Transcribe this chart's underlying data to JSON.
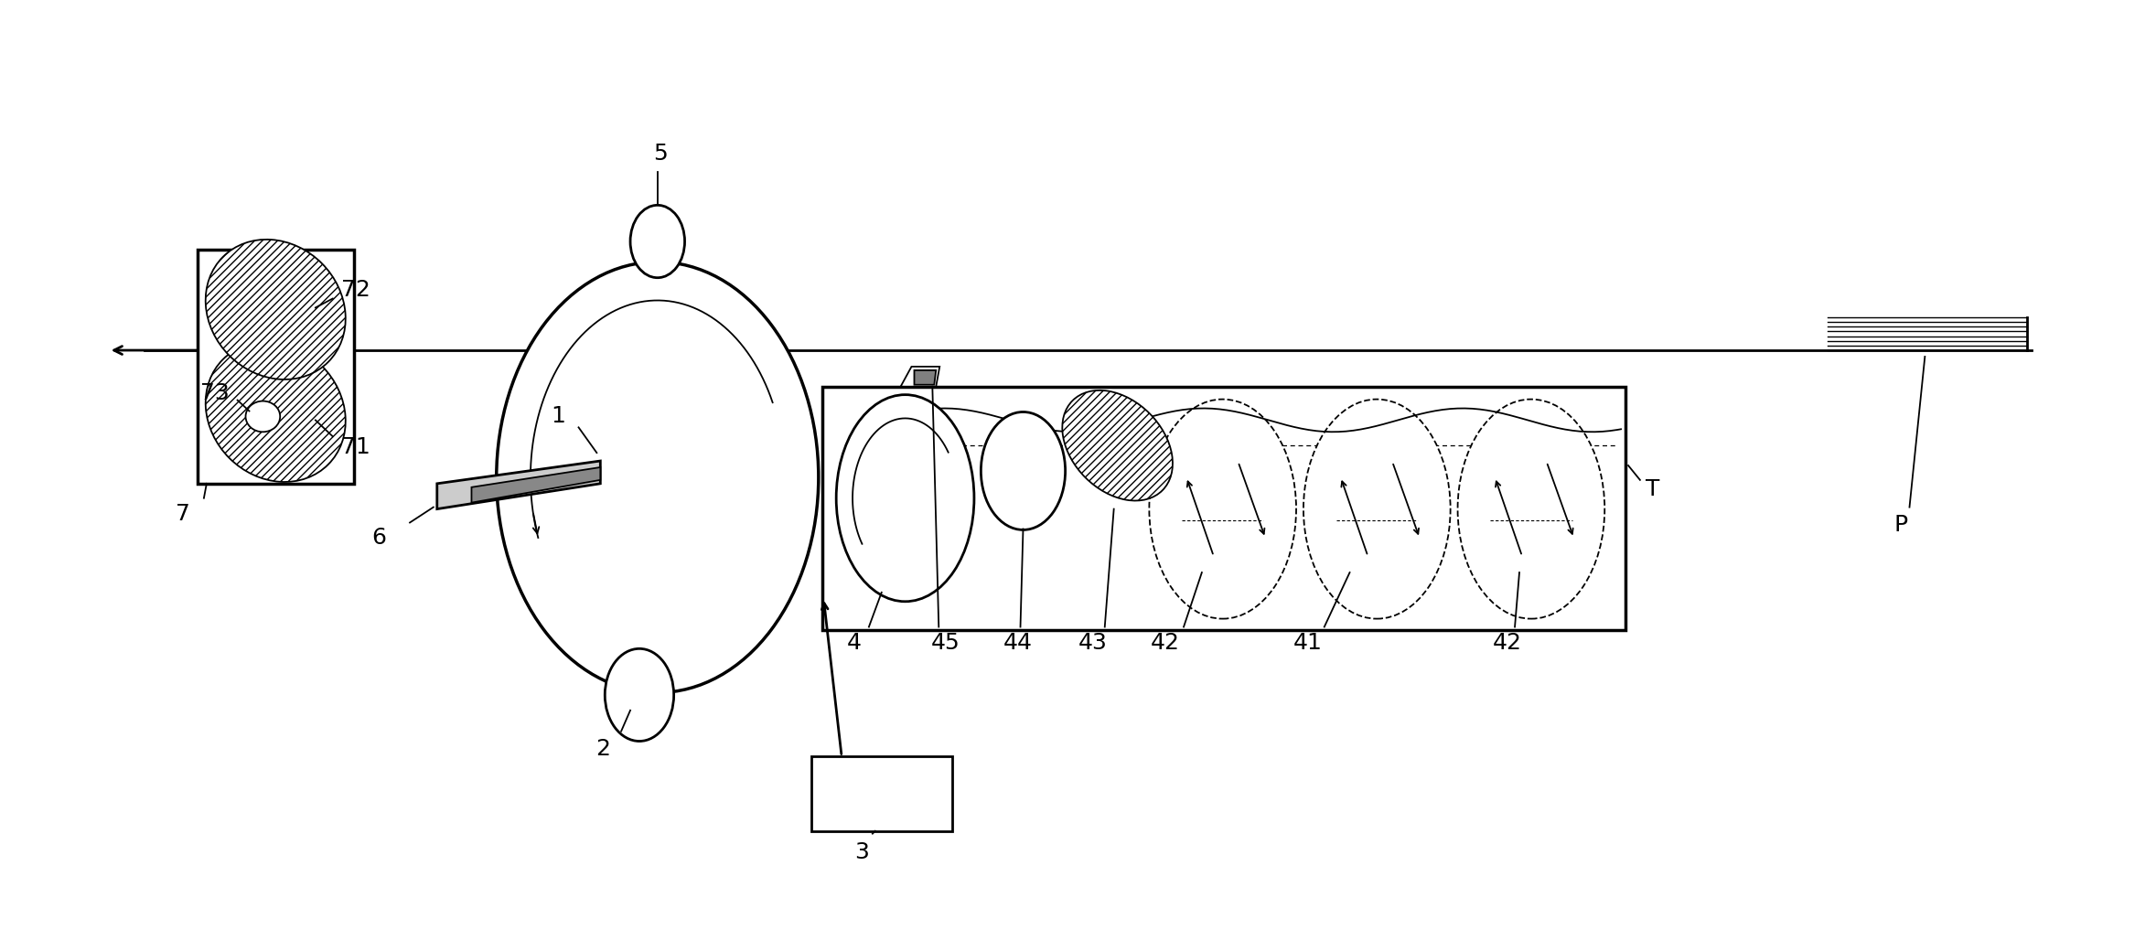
{
  "bg_color": "#ffffff",
  "line_color": "#000000",
  "lw": 2.0,
  "lw_thin": 1.3,
  "lw_thick": 2.5,
  "figsize": [
    23.57,
    10.17
  ],
  "dpi": 100
}
